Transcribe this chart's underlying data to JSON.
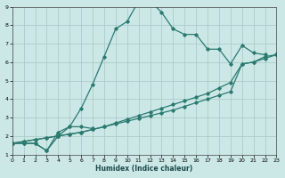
{
  "xlabel": "Humidex (Indice chaleur)",
  "xlim": [
    0,
    23
  ],
  "ylim": [
    1,
    9
  ],
  "xticks": [
    0,
    1,
    2,
    3,
    4,
    5,
    6,
    7,
    8,
    9,
    10,
    11,
    12,
    13,
    14,
    15,
    16,
    17,
    18,
    19,
    20,
    21,
    22,
    23
  ],
  "yticks": [
    1,
    2,
    3,
    4,
    5,
    6,
    7,
    8,
    9
  ],
  "bg_color": "#cce8e6",
  "grid_color": "#aaccca",
  "line_color": "#2a7a70",
  "line1_x": [
    0,
    1,
    2,
    3,
    4,
    5,
    6,
    7,
    8,
    9,
    10,
    11,
    12,
    13,
    14,
    15,
    16,
    17,
    18,
    19,
    20,
    21,
    22
  ],
  "line1_y": [
    1.6,
    1.6,
    1.6,
    1.2,
    2.0,
    2.5,
    3.5,
    4.8,
    6.3,
    7.8,
    8.2,
    9.3,
    9.3,
    8.7,
    7.8,
    7.5,
    7.5,
    6.7,
    6.7,
    5.9,
    6.9,
    6.5,
    6.4
  ],
  "line2_x": [
    0,
    1,
    2,
    3,
    4,
    5,
    6,
    7
  ],
  "line2_y": [
    1.6,
    1.6,
    1.6,
    1.2,
    2.2,
    2.5,
    2.5,
    2.4
  ],
  "line3_x": [
    0,
    1,
    2,
    3,
    4,
    5,
    6,
    7,
    8,
    9,
    10,
    11,
    12,
    13,
    14,
    15,
    16,
    17,
    18,
    19,
    20,
    21,
    22,
    23
  ],
  "line3_y": [
    1.6,
    1.7,
    1.8,
    1.9,
    2.0,
    2.1,
    2.2,
    2.35,
    2.5,
    2.65,
    2.8,
    2.95,
    3.1,
    3.25,
    3.4,
    3.6,
    3.8,
    4.0,
    4.2,
    4.4,
    5.9,
    6.0,
    6.3,
    6.4
  ],
  "line4_x": [
    0,
    1,
    2,
    3,
    4,
    5,
    6,
    7,
    8,
    9,
    10,
    11,
    12,
    13,
    14,
    15,
    16,
    17,
    18,
    19,
    20,
    21,
    22,
    23
  ],
  "line4_y": [
    1.6,
    1.7,
    1.8,
    1.9,
    2.0,
    2.1,
    2.2,
    2.35,
    2.5,
    2.7,
    2.9,
    3.1,
    3.3,
    3.5,
    3.7,
    3.9,
    4.1,
    4.3,
    4.6,
    4.9,
    5.9,
    6.0,
    6.2,
    6.4
  ]
}
